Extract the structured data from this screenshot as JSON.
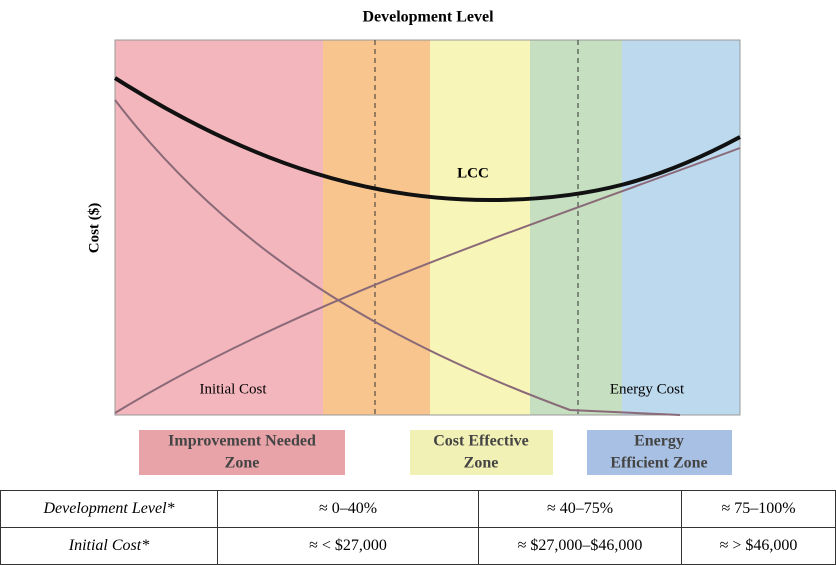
{
  "title": "Development Level",
  "y_axis_label": "Cost ($)",
  "curves": {
    "lcc": "LCC",
    "initial": "Initial Cost",
    "energy": "Energy Cost"
  },
  "zones": [
    {
      "lines": [
        "Improvement Needed",
        "Zone"
      ]
    },
    {
      "lines": [
        "Cost Effective",
        "Zone"
      ]
    },
    {
      "lines": [
        "Energy",
        "Efficient Zone"
      ]
    }
  ],
  "table": {
    "rows": [
      [
        "Development Level*",
        "≈ 0–40%",
        "≈ 40–75%",
        "≈ 75–100%"
      ],
      [
        "Initial Cost*",
        "≈ < $27,000",
        "≈ $27,000–$46,000",
        "≈ > $46,000"
      ]
    ]
  }
}
